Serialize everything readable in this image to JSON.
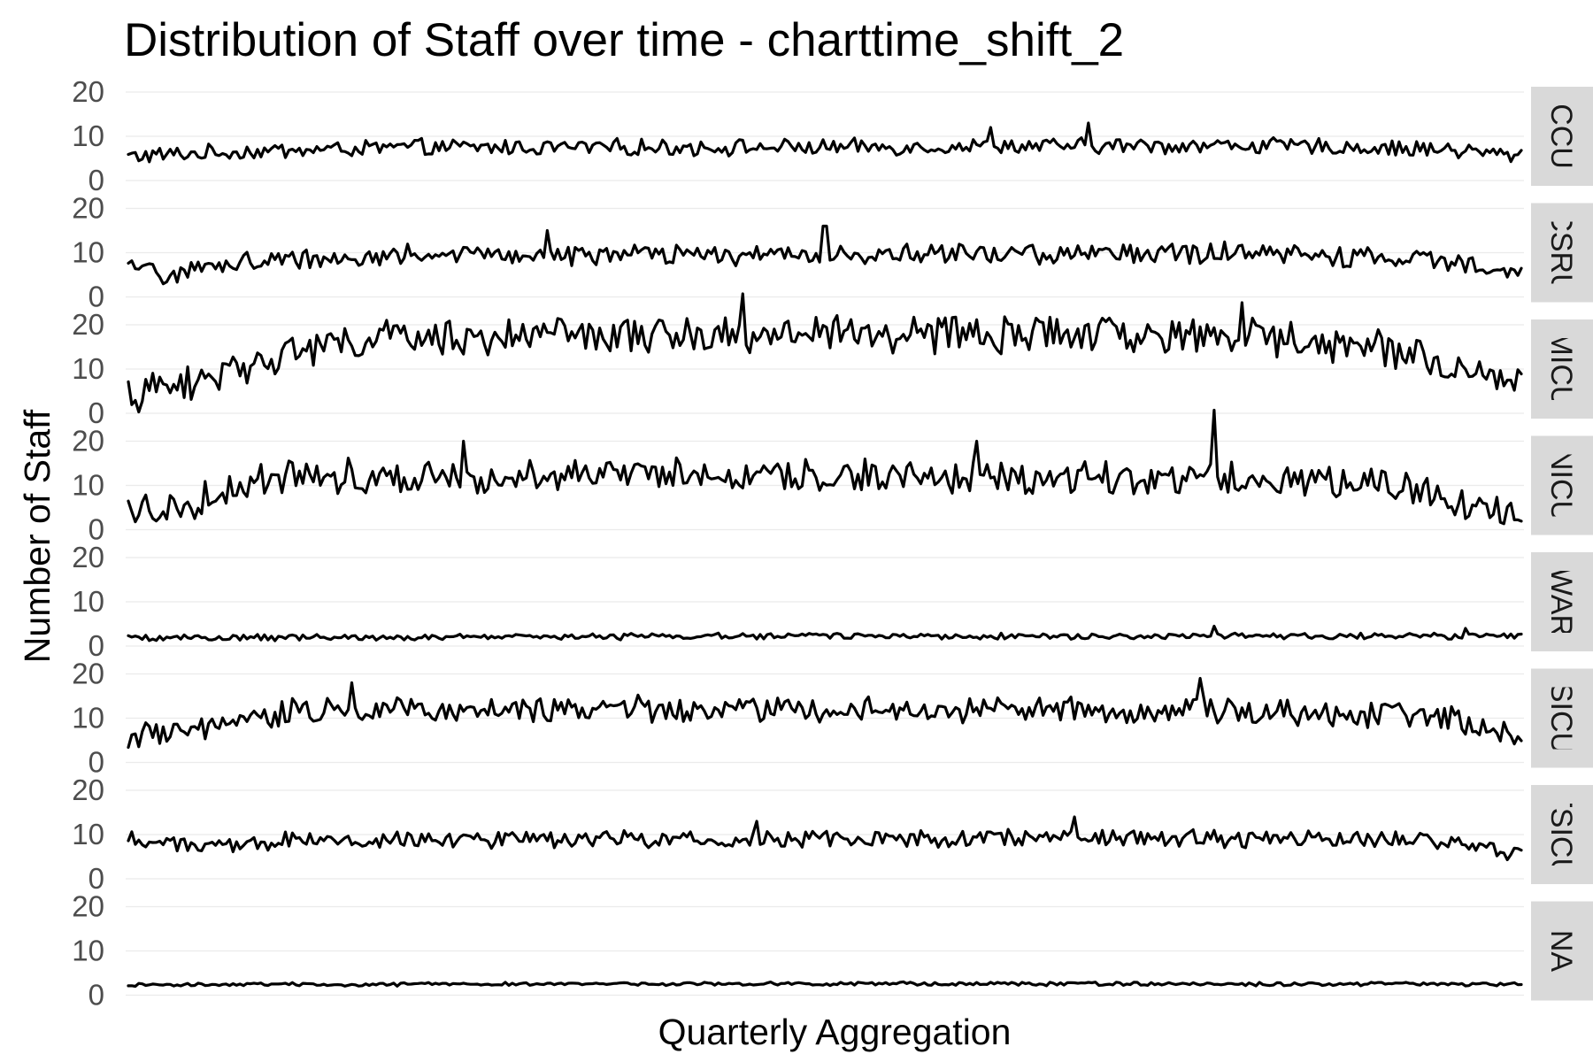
{
  "chart_data": {
    "type": "line",
    "title": "Distribution of Staff over time - charttime_shift_2",
    "xlabel": "Quarterly Aggregation",
    "ylabel": "Number of Staff",
    "ylim": [
      0,
      20
    ],
    "yticks": [
      0,
      10,
      20
    ],
    "x_tick_labels": [],
    "grid": false,
    "legend": "none",
    "facet_strip_position": "right",
    "line_color": "#000000",
    "n_points": 400,
    "panels": [
      {
        "label": "CCU",
        "strip_text": "CCU",
        "profile": [
          [
            0,
            5.5
          ],
          [
            0.08,
            6.5
          ],
          [
            0.2,
            7.5
          ],
          [
            0.5,
            7.5
          ],
          [
            0.8,
            8
          ],
          [
            0.95,
            7
          ],
          [
            1,
            5.5
          ]
        ],
        "noise": 1.6,
        "spikes": [
          [
            0.69,
            13
          ],
          [
            0.62,
            12
          ]
        ]
      },
      {
        "label": "CSRU",
        "strip_text": "CSRU",
        "profile": [
          [
            0,
            6.5
          ],
          [
            0.03,
            5
          ],
          [
            0.08,
            8
          ],
          [
            0.2,
            9.5
          ],
          [
            0.5,
            9.5
          ],
          [
            0.8,
            10
          ],
          [
            0.95,
            8
          ],
          [
            1,
            6.5
          ]
        ],
        "noise": 2.0,
        "spikes": [
          [
            0.5,
            16
          ],
          [
            0.3,
            15
          ]
        ]
      },
      {
        "label": "MICU",
        "strip_text": "MICU",
        "profile": [
          [
            0,
            4
          ],
          [
            0.05,
            7
          ],
          [
            0.1,
            13
          ],
          [
            0.18,
            17
          ],
          [
            0.5,
            18
          ],
          [
            0.8,
            17.5
          ],
          [
            0.9,
            15
          ],
          [
            1,
            7
          ]
        ],
        "noise": 3.6,
        "spikes": [
          [
            0.44,
            27
          ],
          [
            0.8,
            25
          ]
        ]
      },
      {
        "label": "NICU",
        "strip_text": "NICU",
        "profile": [
          [
            0,
            4.5
          ],
          [
            0.04,
            5
          ],
          [
            0.05,
            6.5
          ],
          [
            0.1,
            12
          ],
          [
            0.3,
            12.5
          ],
          [
            0.6,
            12
          ],
          [
            0.9,
            11
          ],
          [
            1,
            3
          ]
        ],
        "noise": 3.4,
        "spikes": [
          [
            0.78,
            27
          ],
          [
            0.24,
            20
          ],
          [
            0.61,
            20
          ]
        ]
      },
      {
        "label": "NWARD",
        "strip_text": "NWARD",
        "profile": [
          [
            0,
            1.8
          ],
          [
            0.5,
            2.3
          ],
          [
            1,
            2.2
          ]
        ],
        "noise": 0.6,
        "spikes": [
          [
            0.78,
            4.5
          ],
          [
            0.96,
            4
          ]
        ]
      },
      {
        "label": "SICU",
        "strip_text": "SICU",
        "profile": [
          [
            0,
            5.5
          ],
          [
            0.05,
            7
          ],
          [
            0.12,
            12
          ],
          [
            0.5,
            12
          ],
          [
            0.85,
            11.5
          ],
          [
            0.95,
            10
          ],
          [
            1,
            6.5
          ]
        ],
        "noise": 2.6,
        "spikes": [
          [
            0.77,
            19
          ],
          [
            0.16,
            18
          ]
        ]
      },
      {
        "label": "TSICU",
        "strip_text": "TSICU",
        "profile": [
          [
            0,
            9.5
          ],
          [
            0.03,
            7
          ],
          [
            0.15,
            9
          ],
          [
            0.5,
            9
          ],
          [
            0.85,
            9
          ],
          [
            0.95,
            8.5
          ],
          [
            1,
            5.5
          ]
        ],
        "noise": 1.8,
        "spikes": [
          [
            0.68,
            14
          ],
          [
            0.45,
            13
          ]
        ]
      },
      {
        "label": "NA",
        "strip_text": "NA",
        "profile": [
          [
            0,
            2.4
          ],
          [
            0.5,
            2.6
          ],
          [
            1,
            2.5
          ]
        ],
        "noise": 0.35,
        "spikes": []
      }
    ]
  }
}
